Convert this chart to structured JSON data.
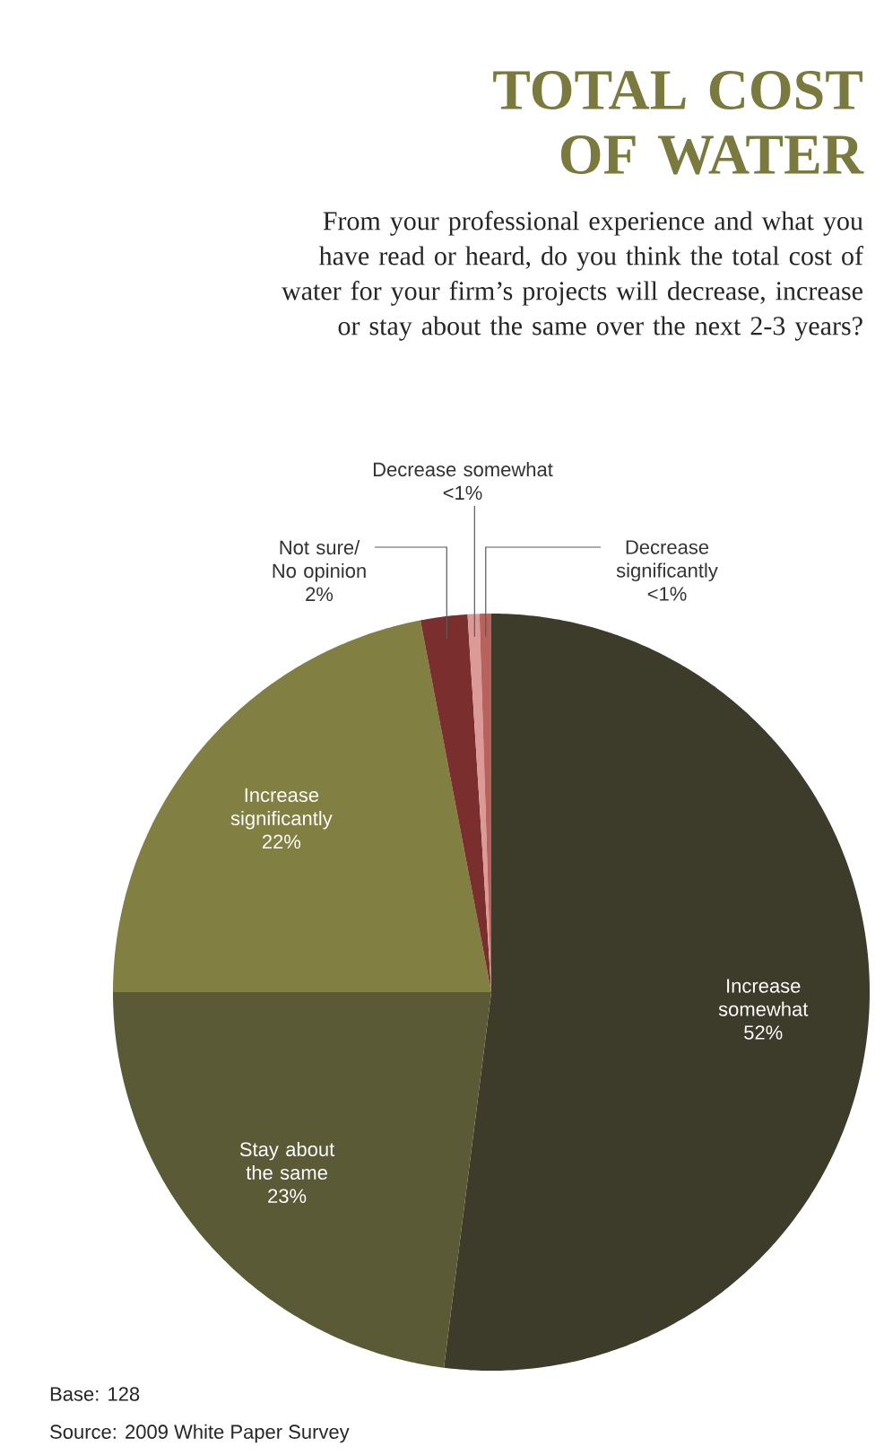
{
  "chart_data": {
    "type": "pie",
    "title": "TOTAL COST OF WATER",
    "subtitle": "From your professional experience and what you have read or heard, do you think the total cost of water for your firm’s projects will decrease, increase or stay about the same over the next 2-3 years?",
    "categories": [
      "Increase somewhat",
      "Stay about the same",
      "Increase significantly",
      "Not sure/ No opinion",
      "Decrease somewhat",
      "Decrease significantly"
    ],
    "values": [
      52,
      23,
      22,
      2,
      0.5,
      0.5
    ],
    "value_labels": [
      "52%",
      "23%",
      "22%",
      "2%",
      "<1%",
      "<1%"
    ],
    "colors": [
      "#3d3b29",
      "#5b5a36",
      "#827f42",
      "#7a2e2e",
      "#dc9a96",
      "#b8625e"
    ],
    "annotations": [
      "Base: 128",
      "Source: 2009 White Paper Survey"
    ]
  }
}
